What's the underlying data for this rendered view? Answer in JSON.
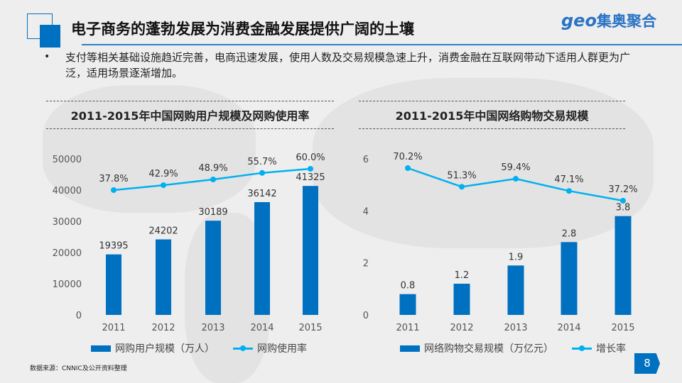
{
  "header": {
    "title": "电子商务的蓬勃发展为消费金融发展提供广阔的土壤",
    "logo_text": "geo",
    "logo_cn": "集奥聚合"
  },
  "body": {
    "bullet": "•",
    "text": "支付等相关基础设施趋近完善，电商迅速发展，使用人数及交易规模急速上升，消费金融在互联网带动下适用人群更为广泛，适用场景逐渐增加。"
  },
  "colors": {
    "accent": "#0070c0",
    "line": "#00b0f0"
  },
  "chart_data": [
    {
      "type": "bar+line",
      "title": "2011-2015年中国网购用户规模及网购使用率",
      "categories": [
        "2011",
        "2012",
        "2013",
        "2014",
        "2015"
      ],
      "yticks": [
        "0",
        "10000",
        "20000",
        "30000",
        "40000",
        "50000"
      ],
      "ylim": [
        0,
        50000
      ],
      "series": [
        {
          "name": "网购用户规模（万人）",
          "type": "bar",
          "values": [
            19395,
            24202,
            30189,
            36142,
            41325
          ],
          "labels": [
            "19395",
            "24202",
            "30189",
            "36142",
            "41325"
          ]
        },
        {
          "name": "网购使用率",
          "type": "line",
          "values": [
            37.8,
            42.9,
            48.9,
            55.7,
            60.0
          ],
          "labels": [
            "37.8%",
            "42.9%",
            "48.9%",
            "55.7%",
            "60.0%"
          ]
        }
      ],
      "legend": "bottom"
    },
    {
      "type": "bar+line",
      "title": "2011-2015年中国网络购物交易规模",
      "categories": [
        "2011",
        "2012",
        "2013",
        "2014",
        "2015"
      ],
      "yticks": [
        "0",
        "2",
        "4",
        "6"
      ],
      "ylim": [
        0,
        6
      ],
      "series": [
        {
          "name": "网络购物交易规模（万亿元）",
          "type": "bar",
          "values": [
            0.8,
            1.2,
            1.9,
            2.8,
            3.8
          ],
          "labels": [
            "0.8",
            "1.2",
            "1.9",
            "2.8",
            "3.8"
          ]
        },
        {
          "name": "增长率",
          "type": "line",
          "values": [
            70.2,
            51.3,
            59.4,
            47.1,
            37.2
          ],
          "labels": [
            "70.2%",
            "51.3%",
            "59.4%",
            "47.1%",
            "37.2%"
          ]
        }
      ],
      "legend": "bottom"
    }
  ],
  "footer": {
    "source": "数据来源：CNNIC及公开资料整理",
    "page": "8"
  }
}
